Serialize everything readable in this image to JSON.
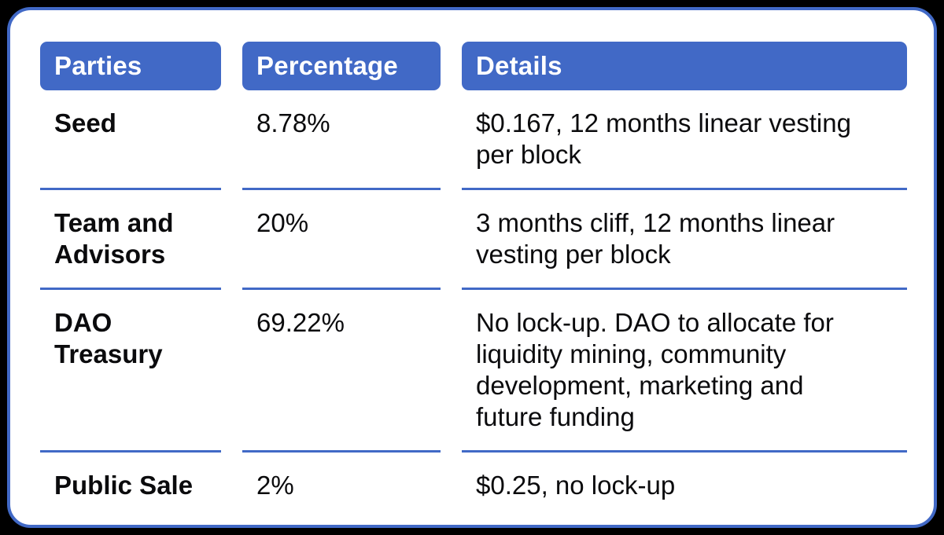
{
  "colors": {
    "background": "#000000",
    "card_background": "#FFFFFF",
    "accent_blue": "#4169C6",
    "header_text": "#FFFFFF",
    "body_text": "#0B0B0D"
  },
  "chart_data": {
    "type": "table",
    "columns": [
      "Parties",
      "Percentage",
      "Details"
    ],
    "rows": [
      {
        "party": "Seed",
        "percentage": "8.78%",
        "details": "$0.167, 12 months linear vesting per block"
      },
      {
        "party": "Team and Advisors",
        "percentage": "20%",
        "details": "3 months cliff, 12 months linear vesting per block"
      },
      {
        "party": "DAO Treasury",
        "percentage": "69.22%",
        "details": "No lock-up. DAO to allocate for liquidity mining, community development, marketing and future funding"
      },
      {
        "party": "Public Sale",
        "percentage": "2%",
        "details": "$0.25, no lock-up"
      }
    ]
  }
}
